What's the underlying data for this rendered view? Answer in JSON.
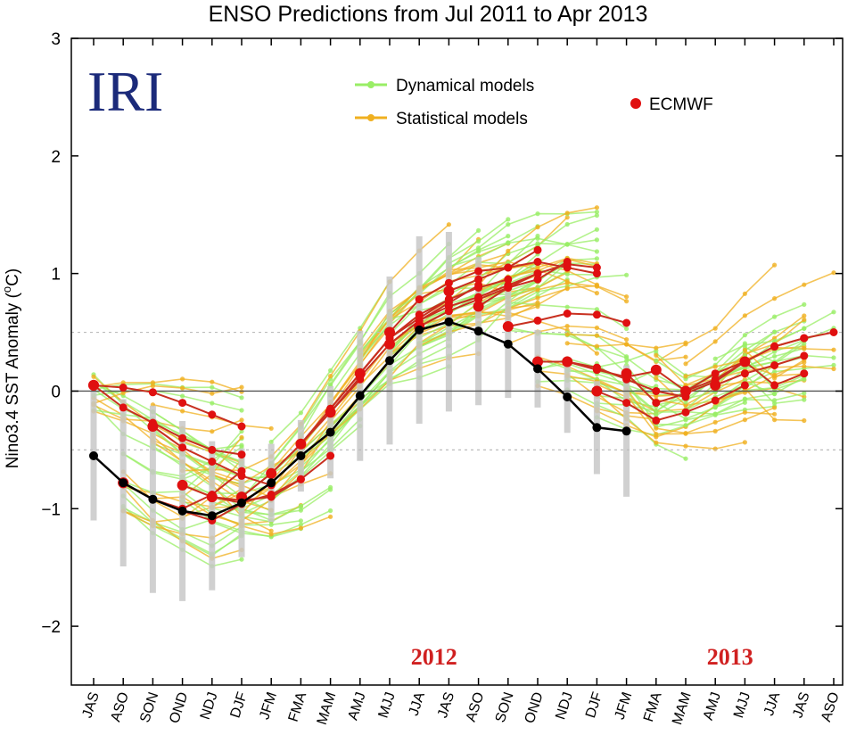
{
  "chart_data": {
    "type": "line",
    "title": "ENSO Predictions from Jul 2011 to Apr 2013",
    "ylabel_parts": {
      "before": "Nino3.4 SST Anomaly (",
      "sup": "o",
      "after": "C)"
    },
    "ylim": [
      -2.5,
      3
    ],
    "yticks": [
      -2,
      -1,
      0,
      1,
      2,
      3
    ],
    "ytick_labels": [
      "−2",
      "−1",
      "0",
      "1",
      "2",
      "3"
    ],
    "reference_lines": [
      0,
      0.5,
      -0.5
    ],
    "categories": [
      "JAS",
      "ASO",
      "SON",
      "OND",
      "NDJ",
      "DJF",
      "JFM",
      "FMA",
      "MAM",
      "AMJ",
      "MJJ",
      "JJA",
      "JAS",
      "ASO",
      "SON",
      "OND",
      "NDJ",
      "DJF",
      "JFM",
      "FMA",
      "MAM",
      "AMJ",
      "MJJ",
      "JJA",
      "JAS",
      "ASO"
    ],
    "logo": "IRI",
    "year_labels": [
      {
        "text": "2012",
        "category_index": 11.5
      },
      {
        "text": "2013",
        "category_index": 21.5
      }
    ],
    "legend": {
      "dynamical": "Dynamical models",
      "statistical": "Statistical models",
      "ecmwf": "ECMWF"
    },
    "colors": {
      "dynamical": "#99ee66",
      "statistical": "#f0b020",
      "ecmwf": "#e01010",
      "ecmwf_line": "#c83020",
      "observed": "#000000",
      "spread": "#c8c8c8",
      "zero_line": "#555555",
      "ref_line": "#bbbbbb"
    },
    "observed": {
      "name": "observed",
      "start": 0,
      "values": [
        -0.55,
        -0.78,
        -0.92,
        -1.02,
        -1.06,
        -0.95,
        -0.78,
        -0.55,
        -0.35,
        -0.04,
        0.26,
        0.52,
        0.59,
        0.51,
        0.4,
        0.19,
        -0.05,
        -0.31,
        -0.34
      ]
    },
    "ecmwf_series": [
      {
        "start": 0,
        "values": [
          0.05,
          -0.14,
          -0.27,
          -0.4,
          -0.5,
          -0.54
        ]
      },
      {
        "start": 0,
        "values": [
          0.05,
          0.03,
          -0.01,
          -0.1,
          -0.2,
          -0.3
        ]
      },
      {
        "start": 1,
        "values": [
          -0.78,
          -0.92,
          -1.02,
          -1.1,
          -0.96
        ]
      },
      {
        "start": 1,
        "values": [
          -0.78,
          -0.92,
          -1.0,
          -0.88,
          -0.68
        ]
      },
      {
        "start": 2,
        "values": [
          -0.3,
          -0.48,
          -0.6,
          -0.72,
          -0.8
        ]
      },
      {
        "start": 3,
        "values": [
          -0.8,
          -0.9,
          -0.95,
          -0.88,
          -0.75
        ]
      },
      {
        "start": 4,
        "values": [
          -0.9,
          -0.93,
          -0.9,
          -0.75,
          -0.55
        ]
      },
      {
        "start": 5,
        "values": [
          -0.9,
          -0.7,
          -0.45,
          -0.18,
          0.1
        ]
      },
      {
        "start": 6,
        "values": [
          -0.7,
          -0.45,
          -0.15,
          0.15,
          0.45
        ]
      },
      {
        "start": 7,
        "values": [
          -0.45,
          -0.15,
          0.15,
          0.45,
          0.62,
          0.78
        ]
      },
      {
        "start": 8,
        "values": [
          -0.18,
          0.12,
          0.4,
          0.6,
          0.75,
          0.9
        ]
      },
      {
        "start": 9,
        "values": [
          0.15,
          0.45,
          0.65,
          0.78,
          0.88,
          0.95
        ]
      },
      {
        "start": 10,
        "values": [
          0.5,
          0.78,
          0.92,
          1.02,
          1.05,
          1.2
        ]
      },
      {
        "start": 10,
        "values": [
          0.4,
          0.6,
          0.72,
          0.8,
          0.9,
          1.0
        ]
      },
      {
        "start": 11,
        "values": [
          0.55,
          0.68,
          0.78,
          0.88,
          0.95,
          1.1
        ]
      },
      {
        "start": 12,
        "values": [
          0.85,
          0.95,
          1.05,
          1.1,
          1.05,
          1.0
        ]
      },
      {
        "start": 13,
        "values": [
          0.72,
          0.88,
          1.0,
          1.08,
          1.05
        ]
      },
      {
        "start": 14,
        "values": [
          0.55,
          0.6,
          0.66,
          0.65,
          0.58
        ]
      },
      {
        "start": 15,
        "values": [
          0.25,
          0.25,
          0.18,
          0.12,
          0.17
        ]
      },
      {
        "start": 16,
        "values": [
          0.25,
          0.2,
          0.1,
          0.0,
          -0.05
        ]
      },
      {
        "start": 17,
        "values": [
          0.0,
          -0.1,
          -0.25,
          -0.18,
          -0.08,
          0.05
        ]
      },
      {
        "start": 18,
        "values": [
          0.15,
          -0.1,
          -0.02,
          0.08,
          0.25,
          0.38
        ]
      },
      {
        "start": 19,
        "values": [
          0.18,
          0.0,
          0.1,
          0.25,
          0.38,
          0.45
        ]
      },
      {
        "start": 20,
        "values": [
          0.0,
          0.15,
          0.25,
          0.38,
          0.45,
          0.5
        ]
      },
      {
        "start": 21,
        "values": [
          0.05,
          0.15,
          0.22,
          0.3
        ]
      },
      {
        "start": 22,
        "values": [
          0.25,
          0.05,
          0.15
        ]
      }
    ]
  }
}
